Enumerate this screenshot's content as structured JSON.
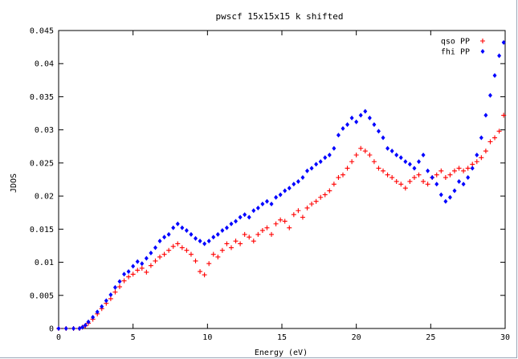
{
  "chart_data": {
    "type": "scatter",
    "title": "pwscf 15x15x15 k shifted",
    "xlabel": "Energy (eV)",
    "ylabel": "JDOS",
    "xlim": [
      0,
      30
    ],
    "ylim": [
      0,
      0.045
    ],
    "xticks": [
      "0",
      "5",
      "10",
      "15",
      "20",
      "25",
      "30"
    ],
    "yticks": [
      "0",
      "0.005",
      "0.01",
      "0.015",
      "0.02",
      "0.025",
      "0.03",
      "0.035",
      "0.04",
      "0.045"
    ],
    "grid": false,
    "legend_position": "top-right",
    "series": [
      {
        "name": "qso PP",
        "marker": "plus",
        "color": "#ff0000",
        "points": [
          [
            0.0,
            0.0
          ],
          [
            0.5,
            0.0
          ],
          [
            1.0,
            0.0
          ],
          [
            1.4,
            0.0
          ],
          [
            1.6,
            0.0002
          ],
          [
            1.8,
            0.0004
          ],
          [
            2.0,
            0.0008
          ],
          [
            2.3,
            0.0014
          ],
          [
            2.6,
            0.0022
          ],
          [
            2.9,
            0.003
          ],
          [
            3.2,
            0.0038
          ],
          [
            3.5,
            0.0045
          ],
          [
            3.8,
            0.0055
          ],
          [
            4.1,
            0.0063
          ],
          [
            4.4,
            0.0072
          ],
          [
            4.7,
            0.0078
          ],
          [
            5.0,
            0.0082
          ],
          [
            5.3,
            0.0088
          ],
          [
            5.6,
            0.0091
          ],
          [
            5.9,
            0.0085
          ],
          [
            6.2,
            0.0095
          ],
          [
            6.5,
            0.0102
          ],
          [
            6.8,
            0.0108
          ],
          [
            7.1,
            0.0112
          ],
          [
            7.4,
            0.0118
          ],
          [
            7.7,
            0.0124
          ],
          [
            8.0,
            0.0128
          ],
          [
            8.3,
            0.0122
          ],
          [
            8.6,
            0.0118
          ],
          [
            8.9,
            0.0112
          ],
          [
            9.2,
            0.0102
          ],
          [
            9.5,
            0.0086
          ],
          [
            9.8,
            0.0081
          ],
          [
            10.1,
            0.0098
          ],
          [
            10.4,
            0.0112
          ],
          [
            10.7,
            0.0108
          ],
          [
            11.0,
            0.0118
          ],
          [
            11.3,
            0.0128
          ],
          [
            11.6,
            0.0122
          ],
          [
            11.9,
            0.0132
          ],
          [
            12.2,
            0.0128
          ],
          [
            12.5,
            0.0142
          ],
          [
            12.8,
            0.0138
          ],
          [
            13.1,
            0.0132
          ],
          [
            13.4,
            0.0142
          ],
          [
            13.7,
            0.0148
          ],
          [
            14.0,
            0.0152
          ],
          [
            14.3,
            0.0142
          ],
          [
            14.6,
            0.0158
          ],
          [
            14.9,
            0.0164
          ],
          [
            15.2,
            0.0162
          ],
          [
            15.5,
            0.0152
          ],
          [
            15.8,
            0.0172
          ],
          [
            16.1,
            0.0178
          ],
          [
            16.4,
            0.0168
          ],
          [
            16.7,
            0.0182
          ],
          [
            17.0,
            0.0188
          ],
          [
            17.3,
            0.0192
          ],
          [
            17.6,
            0.0198
          ],
          [
            17.9,
            0.0202
          ],
          [
            18.2,
            0.0208
          ],
          [
            18.5,
            0.0218
          ],
          [
            18.8,
            0.0228
          ],
          [
            19.1,
            0.0232
          ],
          [
            19.4,
            0.0242
          ],
          [
            19.7,
            0.0252
          ],
          [
            20.0,
            0.0262
          ],
          [
            20.3,
            0.0272
          ],
          [
            20.6,
            0.0268
          ],
          [
            20.9,
            0.0262
          ],
          [
            21.2,
            0.0252
          ],
          [
            21.5,
            0.0242
          ],
          [
            21.8,
            0.0238
          ],
          [
            22.1,
            0.0232
          ],
          [
            22.4,
            0.0228
          ],
          [
            22.7,
            0.0222
          ],
          [
            23.0,
            0.0218
          ],
          [
            23.3,
            0.0212
          ],
          [
            23.6,
            0.0222
          ],
          [
            23.9,
            0.0228
          ],
          [
            24.2,
            0.0232
          ],
          [
            24.5,
            0.0222
          ],
          [
            24.8,
            0.0218
          ],
          [
            25.1,
            0.0228
          ],
          [
            25.4,
            0.0232
          ],
          [
            25.7,
            0.0238
          ],
          [
            26.0,
            0.0228
          ],
          [
            26.3,
            0.0232
          ],
          [
            26.6,
            0.0238
          ],
          [
            26.9,
            0.0242
          ],
          [
            27.2,
            0.0238
          ],
          [
            27.5,
            0.0242
          ],
          [
            27.8,
            0.0248
          ],
          [
            28.1,
            0.0252
          ],
          [
            28.4,
            0.0258
          ],
          [
            28.7,
            0.0268
          ],
          [
            29.0,
            0.0282
          ],
          [
            29.3,
            0.0288
          ],
          [
            29.6,
            0.0298
          ],
          [
            29.9,
            0.0322
          ]
        ]
      },
      {
        "name": "fhi PP",
        "marker": "diamond",
        "color": "#0000ff",
        "points": [
          [
            0.0,
            0.0
          ],
          [
            0.5,
            0.0
          ],
          [
            1.0,
            0.0
          ],
          [
            1.4,
            0.0
          ],
          [
            1.6,
            0.0002
          ],
          [
            1.8,
            0.0005
          ],
          [
            2.0,
            0.001
          ],
          [
            2.3,
            0.0017
          ],
          [
            2.6,
            0.0025
          ],
          [
            2.9,
            0.0033
          ],
          [
            3.2,
            0.0042
          ],
          [
            3.5,
            0.0051
          ],
          [
            3.8,
            0.0062
          ],
          [
            4.1,
            0.0071
          ],
          [
            4.4,
            0.0082
          ],
          [
            4.7,
            0.0086
          ],
          [
            5.0,
            0.0094
          ],
          [
            5.3,
            0.0101
          ],
          [
            5.6,
            0.0098
          ],
          [
            5.9,
            0.0106
          ],
          [
            6.2,
            0.0114
          ],
          [
            6.5,
            0.0122
          ],
          [
            6.8,
            0.0132
          ],
          [
            7.1,
            0.0138
          ],
          [
            7.4,
            0.0142
          ],
          [
            7.7,
            0.0152
          ],
          [
            8.0,
            0.0158
          ],
          [
            8.3,
            0.0152
          ],
          [
            8.6,
            0.0148
          ],
          [
            8.9,
            0.0142
          ],
          [
            9.2,
            0.0136
          ],
          [
            9.5,
            0.0132
          ],
          [
            9.8,
            0.0128
          ],
          [
            10.1,
            0.0132
          ],
          [
            10.4,
            0.0138
          ],
          [
            10.7,
            0.0142
          ],
          [
            11.0,
            0.0148
          ],
          [
            11.3,
            0.0152
          ],
          [
            11.6,
            0.0158
          ],
          [
            11.9,
            0.0162
          ],
          [
            12.2,
            0.0168
          ],
          [
            12.5,
            0.0172
          ],
          [
            12.8,
            0.0168
          ],
          [
            13.1,
            0.0178
          ],
          [
            13.4,
            0.0182
          ],
          [
            13.7,
            0.0188
          ],
          [
            14.0,
            0.0192
          ],
          [
            14.3,
            0.0188
          ],
          [
            14.6,
            0.0198
          ],
          [
            14.9,
            0.0202
          ],
          [
            15.2,
            0.0208
          ],
          [
            15.5,
            0.0212
          ],
          [
            15.8,
            0.0218
          ],
          [
            16.1,
            0.0222
          ],
          [
            16.4,
            0.0228
          ],
          [
            16.7,
            0.0238
          ],
          [
            17.0,
            0.0242
          ],
          [
            17.3,
            0.0248
          ],
          [
            17.6,
            0.0252
          ],
          [
            17.9,
            0.0258
          ],
          [
            18.2,
            0.0262
          ],
          [
            18.5,
            0.0272
          ],
          [
            18.8,
            0.0292
          ],
          [
            19.1,
            0.0302
          ],
          [
            19.4,
            0.0308
          ],
          [
            19.7,
            0.0318
          ],
          [
            20.0,
            0.0312
          ],
          [
            20.3,
            0.0322
          ],
          [
            20.6,
            0.0328
          ],
          [
            20.9,
            0.0318
          ],
          [
            21.2,
            0.0308
          ],
          [
            21.5,
            0.0298
          ],
          [
            21.8,
            0.0288
          ],
          [
            22.1,
            0.0272
          ],
          [
            22.4,
            0.0268
          ],
          [
            22.7,
            0.0262
          ],
          [
            23.0,
            0.0258
          ],
          [
            23.3,
            0.0252
          ],
          [
            23.6,
            0.0248
          ],
          [
            23.9,
            0.0242
          ],
          [
            24.2,
            0.0252
          ],
          [
            24.5,
            0.0262
          ],
          [
            24.8,
            0.0238
          ],
          [
            25.1,
            0.0228
          ],
          [
            25.4,
            0.0218
          ],
          [
            25.7,
            0.0202
          ],
          [
            26.0,
            0.0192
          ],
          [
            26.3,
            0.0198
          ],
          [
            26.6,
            0.0208
          ],
          [
            26.9,
            0.0222
          ],
          [
            27.2,
            0.0218
          ],
          [
            27.5,
            0.0228
          ],
          [
            27.8,
            0.0242
          ],
          [
            28.1,
            0.0262
          ],
          [
            28.4,
            0.0288
          ],
          [
            28.7,
            0.0322
          ],
          [
            29.0,
            0.0352
          ],
          [
            29.3,
            0.0382
          ],
          [
            29.6,
            0.0412
          ],
          [
            29.9,
            0.0432
          ]
        ]
      }
    ]
  }
}
